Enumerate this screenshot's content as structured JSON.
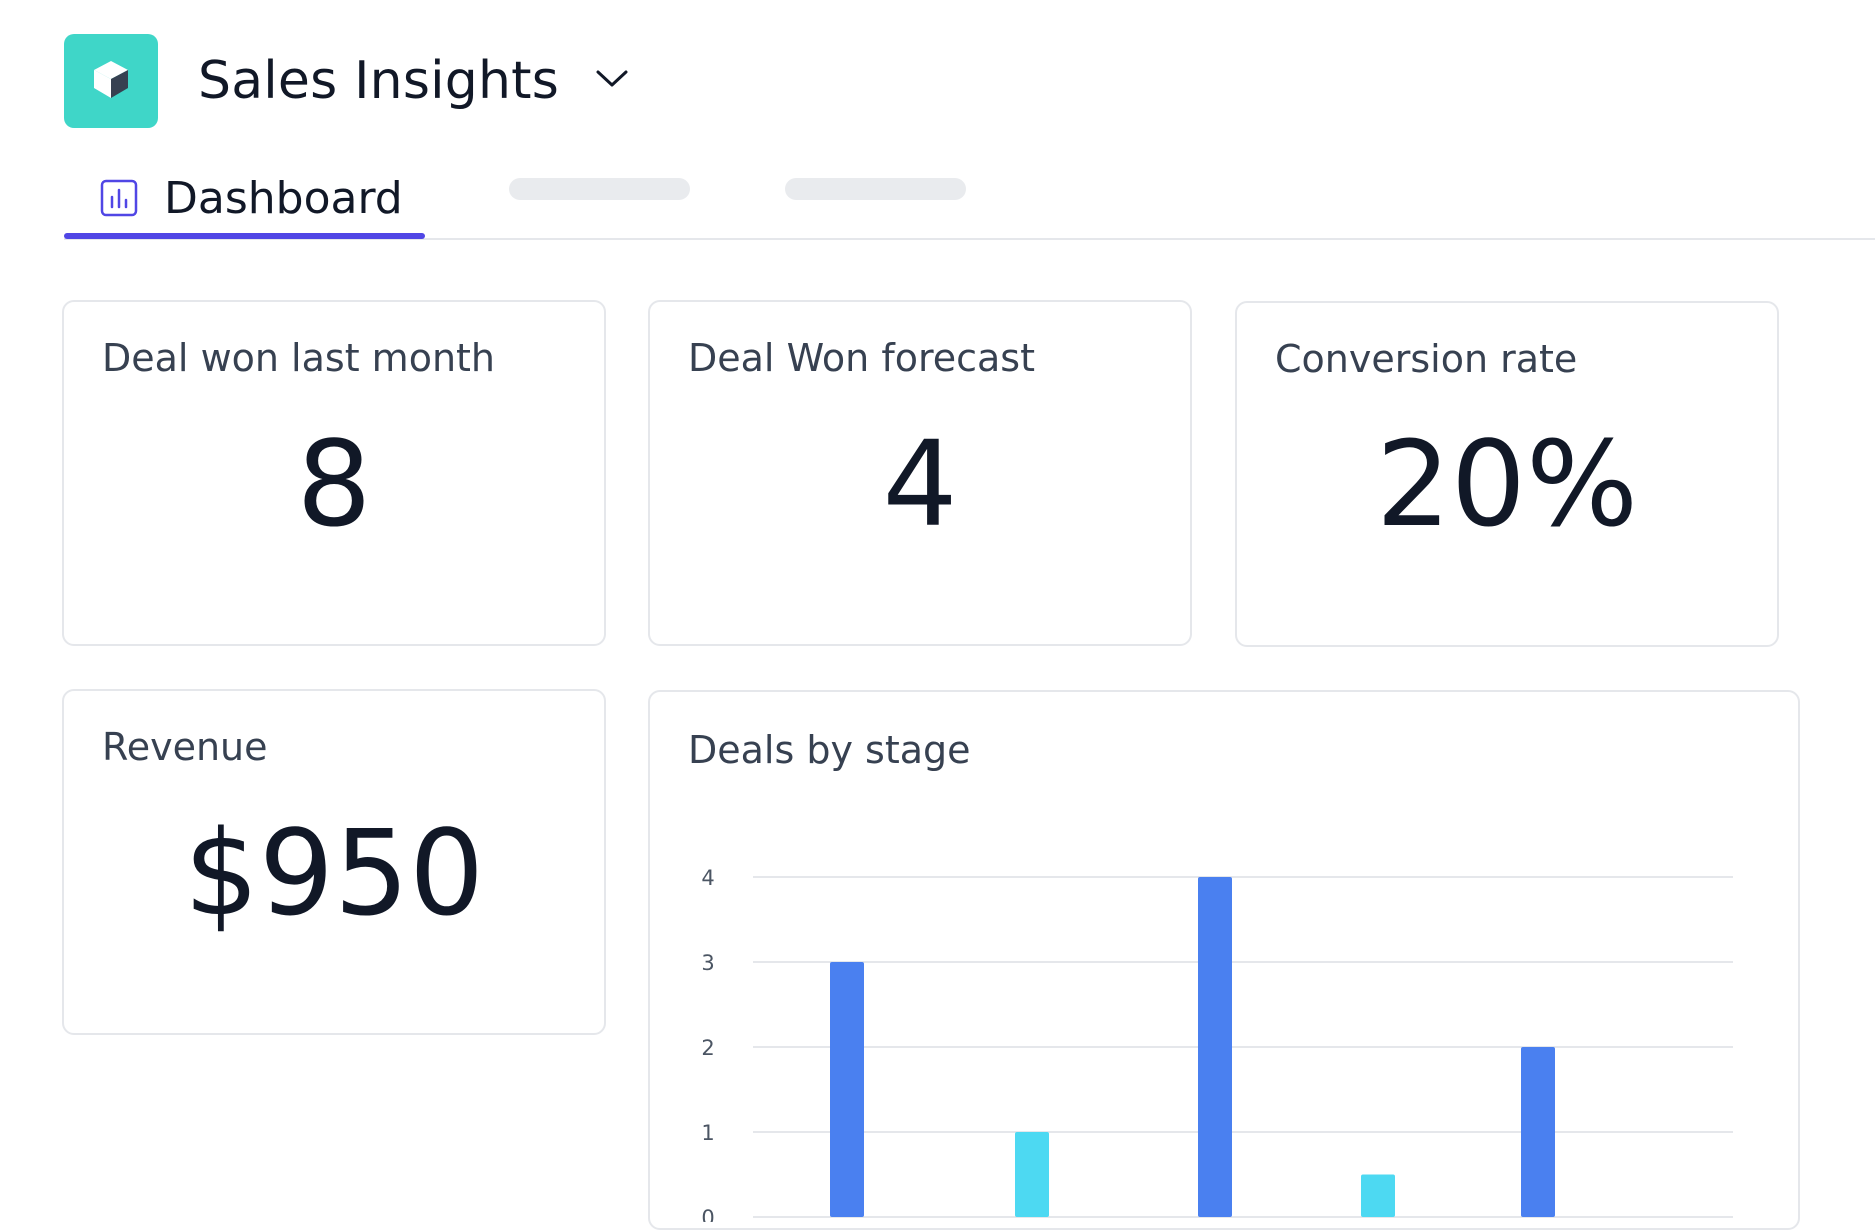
{
  "app": {
    "title": "Sales Insights",
    "logo_icon": "cube-icon",
    "dropdown_icon": "chevron-down-icon",
    "accent_color": "#3fd6c8"
  },
  "tabs": {
    "active": {
      "label": "Dashboard",
      "icon": "bar-chart-icon",
      "indicator_color": "#5046e5"
    }
  },
  "cards": {
    "deals_won_last_month": {
      "label": "Deal won last month",
      "value": "8"
    },
    "deal_won_forecast": {
      "label": "Deal Won forecast",
      "value": "4"
    },
    "conversion_rate": {
      "label": "Conversion rate",
      "value": "20%"
    },
    "revenue": {
      "label": "Revenue",
      "value": "$950"
    }
  },
  "deals_chart": {
    "label": "Deals by stage"
  },
  "chart_data": {
    "type": "bar",
    "title": "Deals by stage",
    "categories": [
      "",
      "",
      "",
      "",
      ""
    ],
    "values": [
      3,
      1,
      4,
      0.5,
      2
    ],
    "colors": [
      "#4a80f0",
      "#4dd9f2",
      "#4a80f0",
      "#4dd9f2",
      "#4a80f0"
    ],
    "y_ticks": [
      "0",
      "1",
      "2",
      "3",
      "4"
    ],
    "ylim": [
      0,
      4
    ],
    "grid": true,
    "legend": "none"
  }
}
